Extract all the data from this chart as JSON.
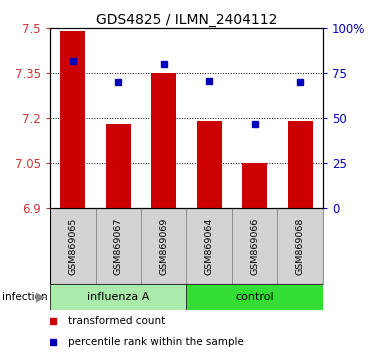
{
  "title": "GDS4825 / ILMN_2404112",
  "samples": [
    "GSM869065",
    "GSM869067",
    "GSM869069",
    "GSM869064",
    "GSM869066",
    "GSM869068"
  ],
  "bar_values": [
    7.49,
    7.18,
    7.35,
    7.19,
    7.05,
    7.19
  ],
  "percentile_values": [
    82,
    70,
    80,
    71,
    47,
    70
  ],
  "bar_color": "#CC0000",
  "dot_color": "#0000BB",
  "y_min": 6.9,
  "y_max": 7.5,
  "y_ticks": [
    6.9,
    7.05,
    7.2,
    7.35,
    7.5
  ],
  "y_ticks_right": [
    0,
    25,
    50,
    75,
    100
  ],
  "title_fontsize": 10,
  "legend_items": [
    "transformed count",
    "percentile rank within the sample"
  ],
  "infection_label": "infection",
  "bar_width": 0.55,
  "influenza_color": "#AAEAAA",
  "control_color": "#33DD33",
  "n_influenza": 3,
  "n_control": 3
}
